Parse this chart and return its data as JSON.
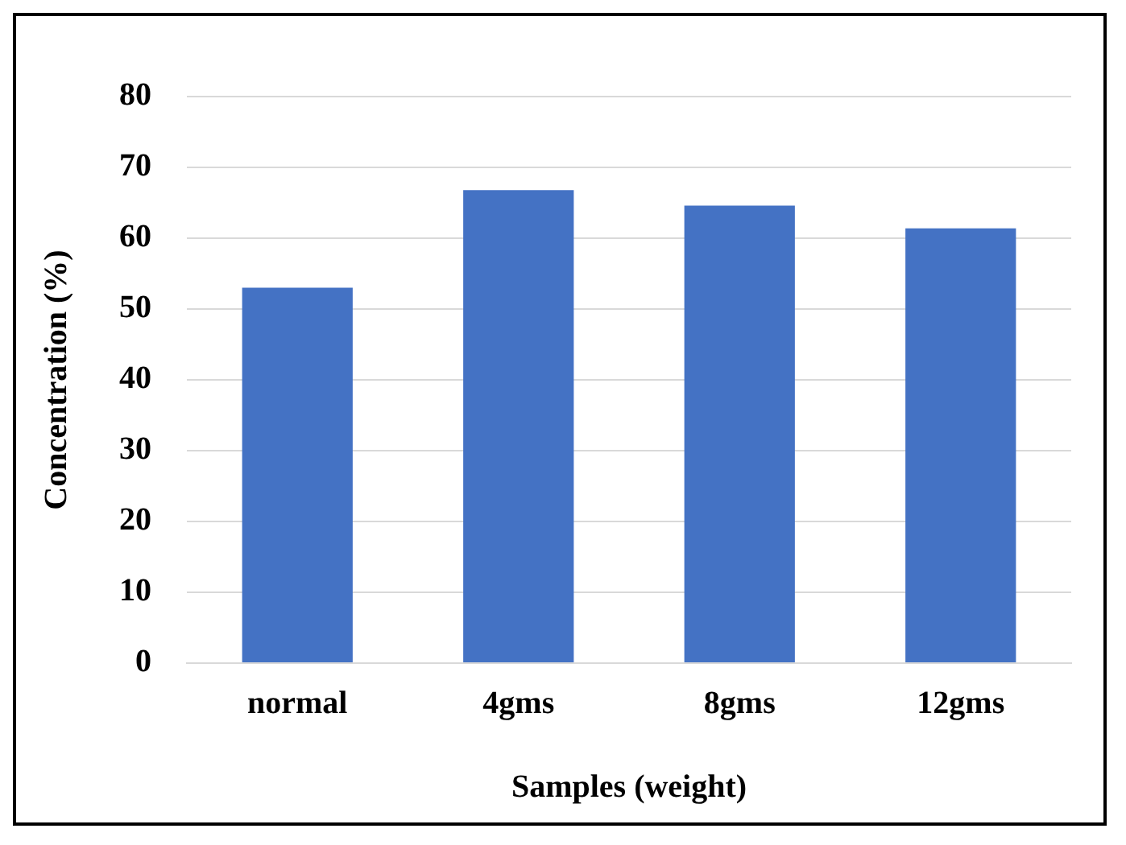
{
  "chart_data": {
    "type": "bar",
    "xlabel": "Samples (weight)",
    "ylabel": "Concentration (%)",
    "categories": [
      "normal",
      "4gms",
      "8gms",
      "12gms"
    ],
    "values": [
      53,
      66.8,
      64.6,
      61.4
    ],
    "color": "#4472c4",
    "ylim": [
      0,
      80
    ],
    "yticks": [
      0,
      10,
      20,
      30,
      40,
      50,
      60,
      70,
      80
    ],
    "grid": "y"
  }
}
